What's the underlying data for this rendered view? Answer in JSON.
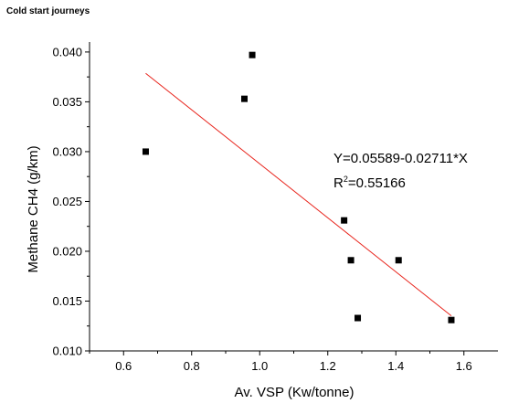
{
  "page_title": "Cold start journeys",
  "chart_data": {
    "type": "scatter",
    "title": "",
    "xlabel": "Av. VSP (Kw/tonne)",
    "ylabel": "Methane CH4 (g/km)",
    "xlim": [
      0.5,
      1.7
    ],
    "ylim": [
      0.01,
      0.041
    ],
    "xticks": [
      0.6,
      0.8,
      1.0,
      1.2,
      1.4,
      1.6
    ],
    "xtick_labels": [
      "0.6",
      "0.8",
      "1.0",
      "1.2",
      "1.4",
      "1.6"
    ],
    "yticks": [
      0.01,
      0.015,
      0.02,
      0.025,
      0.03,
      0.035,
      0.04
    ],
    "ytick_labels": [
      "0.010",
      "0.015",
      "0.020",
      "0.025",
      "0.030",
      "0.035",
      "0.040"
    ],
    "grid": false,
    "legend": "none",
    "points": [
      {
        "x": 0.665,
        "y": 0.03
      },
      {
        "x": 0.955,
        "y": 0.0353
      },
      {
        "x": 0.978,
        "y": 0.0397
      },
      {
        "x": 1.248,
        "y": 0.0231
      },
      {
        "x": 1.268,
        "y": 0.0191
      },
      {
        "x": 1.288,
        "y": 0.0133
      },
      {
        "x": 1.408,
        "y": 0.0191
      },
      {
        "x": 1.563,
        "y": 0.0131
      }
    ],
    "fit": {
      "intercept": 0.05589,
      "slope": -0.02711,
      "x_range": [
        0.665,
        1.563
      ],
      "color": "#e8231b"
    },
    "annotations": {
      "equation": "Y=0.05589-0.02711*X",
      "r_prefix": "R",
      "r_sup": "2",
      "r_value": "=0.55166"
    },
    "marker_color": "#000000"
  }
}
